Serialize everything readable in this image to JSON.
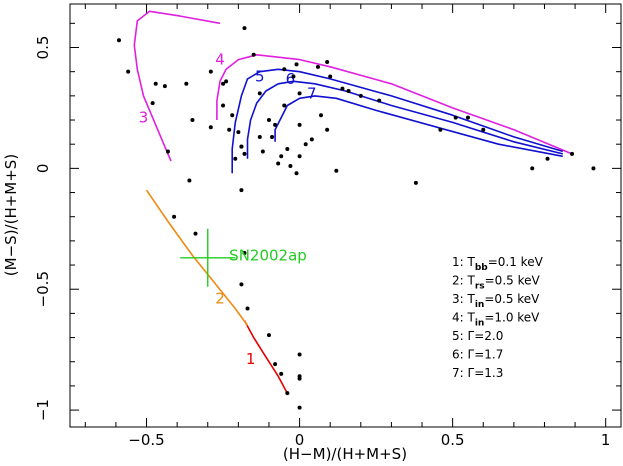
{
  "chart_data": {
    "type": "scatter",
    "xlabel": "(H−M)/(H+M+S)",
    "ylabel": "(M−S)/(H+M+S)",
    "xlim": [
      -0.75,
      1.05
    ],
    "ylim": [
      -1.07,
      0.68
    ],
    "x_ticks": [
      -0.5,
      0,
      0.5,
      1
    ],
    "x_tick_labels": [
      "−0.5",
      "0",
      "0.5",
      "1"
    ],
    "y_ticks": [
      -1,
      -0.5,
      0,
      0.5
    ],
    "y_tick_labels": [
      "−1",
      "−0.5",
      "0",
      "0.5"
    ],
    "grid": false,
    "points": [
      [
        -0.59,
        0.53
      ],
      [
        -0.56,
        0.4
      ],
      [
        -0.47,
        0.35
      ],
      [
        -0.48,
        0.27
      ],
      [
        -0.44,
        0.34
      ],
      [
        -0.43,
        0.07
      ],
      [
        -0.37,
        0.35
      ],
      [
        -0.35,
        0.2
      ],
      [
        -0.36,
        -0.05
      ],
      [
        -0.29,
        0.4
      ],
      [
        -0.29,
        0.17
      ],
      [
        -0.25,
        0.35
      ],
      [
        -0.24,
        0.36
      ],
      [
        -0.25,
        0.26
      ],
      [
        -0.23,
        0.16
      ],
      [
        -0.22,
        0.22
      ],
      [
        -0.2,
        0.15
      ],
      [
        -0.19,
        0.09
      ],
      [
        -0.21,
        0.04
      ],
      [
        -0.18,
        0.06
      ],
      [
        -0.19,
        0.09
      ],
      [
        -0.19,
        -0.09
      ],
      [
        -0.18,
        0.58
      ],
      [
        -0.15,
        0.47
      ],
      [
        -0.13,
        0.31
      ],
      [
        -0.13,
        0.13
      ],
      [
        -0.12,
        0.07
      ],
      [
        -0.1,
        0.2
      ],
      [
        -0.09,
        0.13
      ],
      [
        -0.08,
        0.18
      ],
      [
        -0.07,
        0.02
      ],
      [
        -0.06,
        0.05
      ],
      [
        -0.05,
        0.26
      ],
      [
        -0.05,
        0.41
      ],
      [
        -0.04,
        0.08
      ],
      [
        -0.03,
        0.01
      ],
      [
        -0.02,
        0.38
      ],
      [
        -0.01,
        0.43
      ],
      [
        0.0,
        0.31
      ],
      [
        0.0,
        0.18
      ],
      [
        0.0,
        0.05
      ],
      [
        -0.01,
        -0.02
      ],
      [
        0.02,
        0.1
      ],
      [
        0.04,
        0.12
      ],
      [
        0.06,
        0.42
      ],
      [
        0.07,
        0.22
      ],
      [
        0.09,
        0.16
      ],
      [
        0.09,
        0.44
      ],
      [
        0.1,
        0.38
      ],
      [
        0.12,
        -0.01
      ],
      [
        0.14,
        0.33
      ],
      [
        0.16,
        0.32
      ],
      [
        0.2,
        0.3
      ],
      [
        0.26,
        0.28
      ],
      [
        0.38,
        -0.06
      ],
      [
        0.46,
        0.16
      ],
      [
        0.51,
        0.21
      ],
      [
        0.55,
        0.21
      ],
      [
        0.6,
        0.16
      ],
      [
        0.76,
        0.0
      ],
      [
        0.81,
        0.04
      ],
      [
        0.89,
        0.06
      ],
      [
        0.96,
        0.0
      ],
      [
        -0.41,
        -0.2
      ],
      [
        -0.34,
        -0.27
      ],
      [
        -0.18,
        -0.35
      ],
      [
        -0.19,
        -0.48
      ],
      [
        -0.17,
        -0.58
      ],
      [
        -0.1,
        -0.69
      ],
      [
        -0.08,
        -0.81
      ],
      [
        -0.06,
        -0.85
      ],
      [
        0.0,
        -0.77
      ],
      [
        0.0,
        -0.86
      ],
      [
        0.0,
        -0.87
      ],
      [
        -0.04,
        -0.93
      ],
      [
        0.0,
        -0.99
      ]
    ],
    "curves": [
      {
        "name": "1",
        "color": "#e60000",
        "label": "1",
        "label_at": [
          -0.16,
          -0.81
        ],
        "points": [
          [
            -0.18,
            -0.63
          ],
          [
            -0.15,
            -0.7
          ],
          [
            -0.11,
            -0.78
          ],
          [
            -0.07,
            -0.86
          ],
          [
            -0.04,
            -0.93
          ]
        ]
      },
      {
        "name": "2",
        "color": "#f08a10",
        "label": "2",
        "label_at": [
          -0.26,
          -0.56
        ],
        "points": [
          [
            -0.5,
            -0.09
          ],
          [
            -0.43,
            -0.22
          ],
          [
            -0.35,
            -0.36
          ],
          [
            -0.28,
            -0.47
          ],
          [
            -0.21,
            -0.58
          ],
          [
            -0.17,
            -0.65
          ]
        ]
      },
      {
        "name": "3",
        "color": "#e020e0",
        "label": "3",
        "label_at": [
          -0.51,
          0.19
        ],
        "points": [
          [
            -0.42,
            0.03
          ],
          [
            -0.45,
            0.12
          ],
          [
            -0.48,
            0.21
          ],
          [
            -0.51,
            0.3
          ],
          [
            -0.53,
            0.41
          ],
          [
            -0.54,
            0.51
          ],
          [
            -0.53,
            0.61
          ],
          [
            -0.49,
            0.65
          ],
          [
            -0.39,
            0.63
          ],
          [
            -0.26,
            0.6
          ]
        ]
      },
      {
        "name": "4",
        "color": "#e020e0",
        "label": "4",
        "label_at": [
          -0.26,
          0.43
        ],
        "points": [
          [
            -0.27,
            0.2
          ],
          [
            -0.27,
            0.28
          ],
          [
            -0.26,
            0.36
          ],
          [
            -0.24,
            0.41
          ],
          [
            -0.2,
            0.45
          ],
          [
            -0.14,
            0.47
          ],
          [
            -0.07,
            0.46
          ],
          [
            0.0,
            0.45
          ],
          [
            0.1,
            0.42
          ],
          [
            0.3,
            0.35
          ],
          [
            0.5,
            0.25
          ],
          [
            0.7,
            0.16
          ],
          [
            0.89,
            0.06
          ]
        ]
      },
      {
        "name": "5",
        "color": "#1010d0",
        "label": "5",
        "label_at": [
          -0.13,
          0.36
        ],
        "points": [
          [
            -0.22,
            -0.02
          ],
          [
            -0.22,
            0.08
          ],
          [
            -0.21,
            0.19
          ],
          [
            -0.19,
            0.3
          ],
          [
            -0.17,
            0.37
          ],
          [
            -0.13,
            0.4
          ],
          [
            -0.07,
            0.41
          ],
          [
            0.0,
            0.4
          ],
          [
            0.1,
            0.37
          ],
          [
            0.3,
            0.3
          ],
          [
            0.5,
            0.22
          ],
          [
            0.7,
            0.13
          ],
          [
            0.86,
            0.07
          ]
        ]
      },
      {
        "name": "6",
        "color": "#1010d0",
        "label": "6",
        "label_at": [
          -0.03,
          0.35
        ],
        "points": [
          [
            -0.17,
            0.04
          ],
          [
            -0.17,
            0.12
          ],
          [
            -0.16,
            0.2
          ],
          [
            -0.14,
            0.27
          ],
          [
            -0.11,
            0.32
          ],
          [
            -0.07,
            0.35
          ],
          [
            -0.02,
            0.36
          ],
          [
            0.05,
            0.35
          ],
          [
            0.15,
            0.32
          ],
          [
            0.3,
            0.26
          ],
          [
            0.5,
            0.19
          ],
          [
            0.7,
            0.11
          ],
          [
            0.86,
            0.06
          ]
        ]
      },
      {
        "name": "7",
        "color": "#1010d0",
        "label": "7",
        "label_at": [
          0.04,
          0.29
        ],
        "points": [
          [
            -0.08,
            0.11
          ],
          [
            -0.08,
            0.16
          ],
          [
            -0.06,
            0.21
          ],
          [
            -0.04,
            0.26
          ],
          [
            0.0,
            0.29
          ],
          [
            0.05,
            0.3
          ],
          [
            0.12,
            0.29
          ],
          [
            0.25,
            0.24
          ],
          [
            0.45,
            0.17
          ],
          [
            0.65,
            0.1
          ],
          [
            0.86,
            0.05
          ]
        ]
      }
    ],
    "sn2002ap": {
      "label": "SN2002ap",
      "color": "#22cc22",
      "x": -0.3,
      "y": -0.37,
      "xerr": 0.09,
      "yerr": 0.12,
      "label_at": [
        -0.23,
        -0.36
      ]
    },
    "legend": {
      "position": "bottom-right",
      "entries": [
        {
          "num": "1:",
          "sym": "T",
          "sub": "bb",
          "rest": "=0.1 keV"
        },
        {
          "num": "2:",
          "sym": "T",
          "sub": "rs",
          "rest": "=0.5 keV"
        },
        {
          "num": "3:",
          "sym": "T",
          "sub": "in",
          "rest": "=0.5 keV"
        },
        {
          "num": "4:",
          "sym": "T",
          "sub": "in",
          "rest": "=1.0 keV"
        },
        {
          "num": "5:",
          "sym": "Γ",
          "sub": "",
          "rest": "=2.0"
        },
        {
          "num": "6:",
          "sym": "Γ",
          "sub": "",
          "rest": "=1.7"
        },
        {
          "num": "7:",
          "sym": "Γ",
          "sub": "",
          "rest": "=1.3"
        }
      ]
    }
  }
}
